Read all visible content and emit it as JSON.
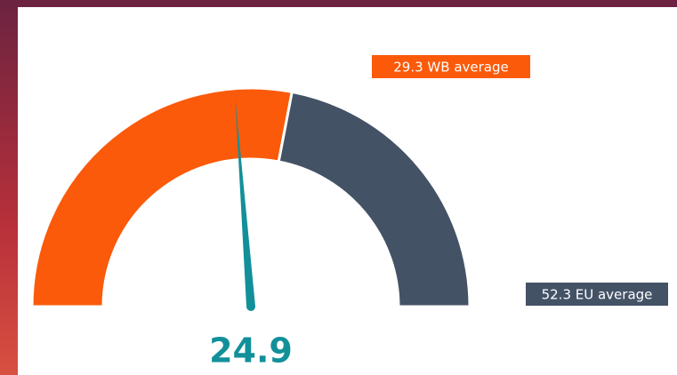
{
  "chart_data": {
    "type": "gauge",
    "value": 24.9,
    "color": "#12909a",
    "ylim": [
      0,
      52.3
    ],
    "bands": [
      {
        "name": "WB average",
        "value": 29.3,
        "label": "29.3 WB average",
        "color": "#fa5a0a"
      },
      {
        "name": "EU average",
        "value": 52.3,
        "label": "52.3 EU average",
        "color": "#445266"
      }
    ]
  }
}
